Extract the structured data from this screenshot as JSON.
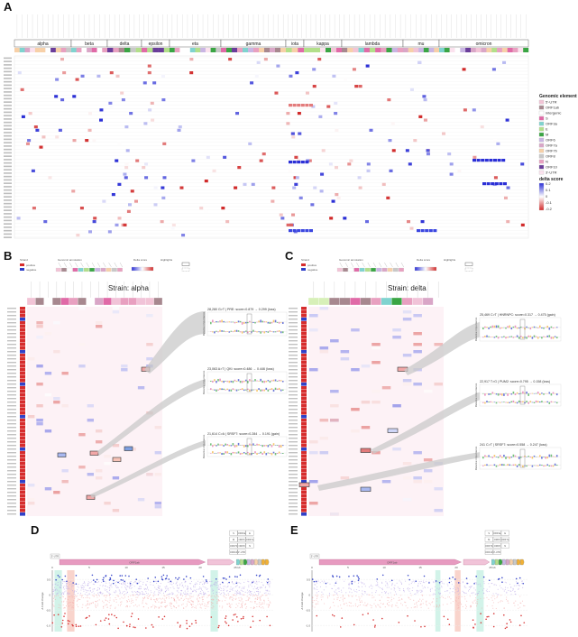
{
  "panels": {
    "a": "A",
    "b": "B",
    "c": "C",
    "d": "D",
    "e": "E"
  },
  "legend_a": {
    "genomic_title": "Genomic element",
    "genomic_items": [
      {
        "label": "5'-UTR",
        "color": "#f2c4d6"
      },
      {
        "label": "ORF1ab",
        "color": "#a7888f"
      },
      {
        "label": "intergenic",
        "color": "#ffffff"
      },
      {
        "label": "S",
        "color": "#e06aa7"
      },
      {
        "label": "ORF3a",
        "color": "#7fd3cf"
      },
      {
        "label": "E",
        "color": "#b2df8a"
      },
      {
        "label": "M",
        "color": "#3aa544"
      },
      {
        "label": "ORF6",
        "color": "#c9b5e3"
      },
      {
        "label": "ORF7a",
        "color": "#d9a6c7"
      },
      {
        "label": "ORF7b",
        "color": "#f7d0a8"
      },
      {
        "label": "ORF8",
        "color": "#c8c8c8"
      },
      {
        "label": "N",
        "color": "#e8a0c0"
      },
      {
        "label": "ORF10",
        "color": "#6a3d9a"
      },
      {
        "label": "3'-UTR",
        "color": "#fbe2ee"
      }
    ],
    "delta_title": "delta score",
    "delta_ticks": [
      "0.2",
      "0.1",
      "0",
      "-0.1",
      "-0.2"
    ]
  },
  "heatmap_a": {
    "strains": [
      "alpha",
      "beta",
      "delta",
      "epsilon",
      "eta",
      "gamma",
      "iota",
      "kappa",
      "lambda",
      "mu",
      "omicron"
    ]
  },
  "panel_b": {
    "title": "Strain: alpha",
    "legend_headers": [
      "Strand",
      "Genomic annotation",
      "Delta score",
      "Highlights"
    ],
    "strand_items": [
      "positive",
      "negative"
    ],
    "notes": [
      "28,280 G>T | PRE: score=0.879 → 0.299 (loss)",
      "23,063 A>T | QKI: score=0.486 → 0.446 (loss)",
      "21,614 C>A | SRSF7: score=0.284 → 0.191 (gain)"
    ],
    "ylabel": "Relative importance"
  },
  "panel_c": {
    "title": "Strain: delta",
    "legend_headers": [
      "Strand",
      "Genomic annotation",
      "Delta score",
      "Highlights"
    ],
    "strand_items": [
      "positive",
      "negative"
    ],
    "notes": [
      "25,469 C>T | HNRNPC: score=0.317 → 0.475 (gain)",
      "22,917 T>G | PUM2: score=0.795 → 0.158 (loss)",
      "241 C>T | SRSF7: score=0.558 → 0.247 (loss)"
    ],
    "ylabel": "Relative importance"
  },
  "panel_d": {
    "genes": [
      "5'-UTR",
      "ORF1ab",
      "S",
      "ORF3a",
      "E",
      "M",
      "ORF6",
      "ORF7a",
      "ORF7b",
      "ORF8",
      "N",
      "ORF10",
      "3'-UTR"
    ],
    "ylabel": "Δ Fold change",
    "xticks": [
      "0",
      "5",
      "10",
      "15",
      "20",
      "25 kb"
    ],
    "yticks": [
      "0.5",
      "0",
      "-0.5",
      "-1.0"
    ]
  },
  "panel_e": {
    "genes": [
      "5'-UTR",
      "ORF1ab",
      "S",
      "ORF3a",
      "E",
      "M",
      "ORF6",
      "ORF7a",
      "ORF7b",
      "ORF8",
      "N",
      "ORF10",
      "3'-UTR"
    ],
    "ylabel": "Δ Fold change",
    "xticks": [
      "0",
      "5",
      "10",
      "15",
      "20",
      "25 kb"
    ],
    "yticks": [
      "0.5",
      "0",
      "-0.5",
      "-1.0"
    ]
  },
  "colors": {
    "pos": "#3040c8",
    "neg": "#d62c2c",
    "light_pos": "#b9a6e6",
    "light_neg": "#f2a7a7",
    "highlight_green": "#bfeee0",
    "highlight_red": "#f7c2b6",
    "grid": "#eeeeee",
    "pink_bg": "#fbe6ee",
    "orf1ab": "#e79ac0",
    "s_gene": "#f1c3d8"
  },
  "chart_data": [
    {
      "type": "heatmap",
      "title": "",
      "categories": [
        "alpha",
        "beta",
        "delta",
        "epsilon",
        "eta",
        "gamma",
        "iota",
        "kappa",
        "lambda",
        "mu",
        "omicron"
      ],
      "value_range": [
        -0.2,
        0.2
      ],
      "legend": "right"
    },
    {
      "type": "heatmap",
      "title": "Strain: alpha",
      "value_range": [
        -0.2,
        0.2
      ]
    },
    {
      "type": "heatmap",
      "title": "Strain: delta",
      "value_range": [
        -0.2,
        0.2
      ]
    },
    {
      "type": "scatter",
      "xlabel": "",
      "ylabel": "Δ Fold change",
      "xlim": [
        0,
        30
      ],
      "ylim": [
        -1.2,
        0.8
      ],
      "highlight_regions": [
        [
          0.3,
          1.3
        ],
        [
          2.0,
          3.0
        ],
        [
          21.4,
          22.4
        ]
      ]
    },
    {
      "type": "scatter",
      "xlabel": "",
      "ylabel": "Δ Fold change",
      "xlim": [
        0,
        30
      ],
      "ylim": [
        -1.2,
        0.8
      ],
      "highlight_regions": [
        [
          17.1,
          17.8
        ],
        [
          19.8,
          20.6
        ],
        [
          22.8,
          23.8
        ]
      ]
    }
  ]
}
